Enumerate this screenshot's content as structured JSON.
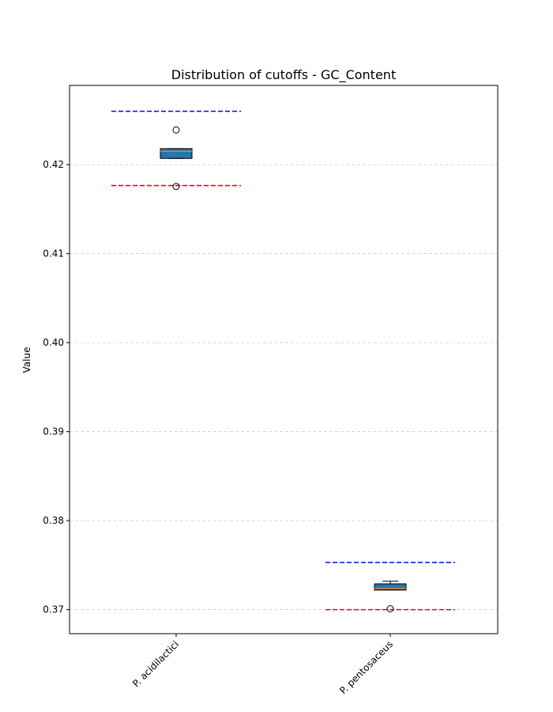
{
  "chart_data": {
    "type": "box",
    "title": "Distribution of cutoffs - GC_Content",
    "xlabel": "",
    "ylabel": "Value",
    "ylim": [
      0.3673,
      0.4289
    ],
    "yticks": [
      0.37,
      0.38,
      0.39,
      0.4,
      0.41,
      0.42
    ],
    "ytick_labels": [
      "0.37",
      "0.38",
      "0.39",
      "0.40",
      "0.41",
      "0.42"
    ],
    "categories": [
      "P. acidilactici",
      "P. pentosaceus"
    ],
    "grid": "horizontal dashed",
    "box_color": "#1f77b4",
    "median_color": "#ff7f0e",
    "upper_line_color": "#0000ff",
    "lower_line_color": "#ff0000",
    "boxes": [
      {
        "category": "P. acidilactici",
        "q1": 0.4207,
        "median": 0.4215,
        "q3": 0.4218,
        "whisker_low": 0.4207,
        "whisker_high": 0.4218,
        "outliers": [
          0.4239,
          0.41755
        ],
        "upper_line": 0.426,
        "lower_line": 0.41765
      },
      {
        "category": "P. pentosaceus",
        "q1": 0.3722,
        "median": 0.3724,
        "q3": 0.3729,
        "whisker_low": 0.3722,
        "whisker_high": 0.3732,
        "outliers": [
          0.3701
        ],
        "upper_line": 0.3753,
        "lower_line": 0.37
      }
    ]
  }
}
